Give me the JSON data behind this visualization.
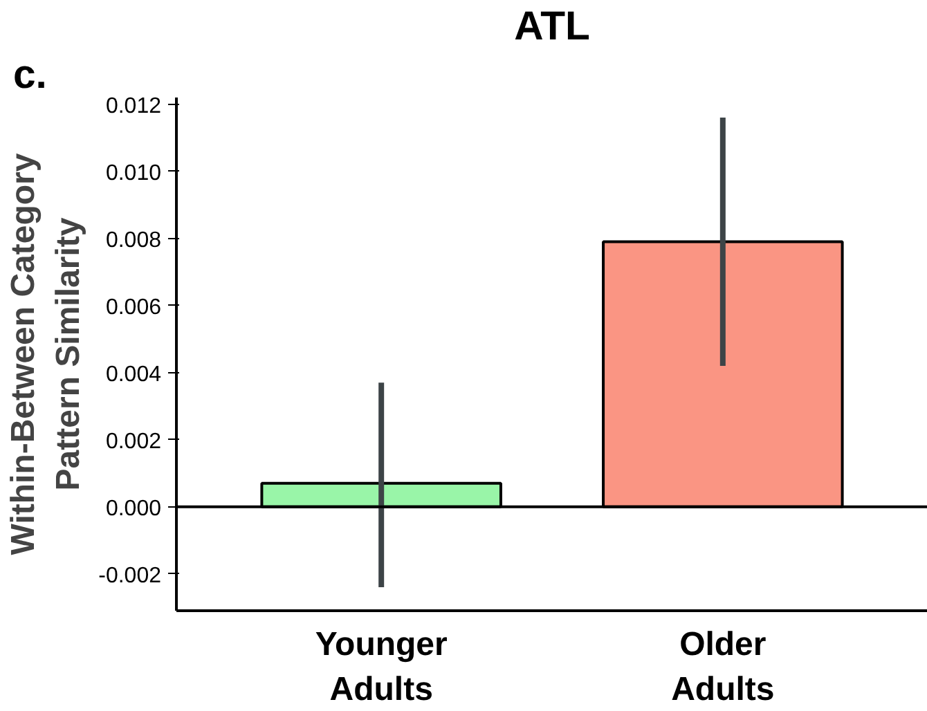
{
  "chart_data": {
    "type": "bar",
    "title": "ATL",
    "ylabel": "Within-Between Category\nPattern Similarity",
    "annotations": [
      "c."
    ],
    "categories": [
      "Younger Adults",
      "Older Adults"
    ],
    "values": [
      0.0007,
      0.0079
    ],
    "colors": [
      "#99f5a8",
      "#fa9583"
    ],
    "errors": [
      [
        -0.0024,
        0.0037
      ],
      [
        0.0042,
        0.0116
      ]
    ],
    "ylim": [
      -0.0031,
      0.0122
    ],
    "yticks": [
      {
        "value": -0.002,
        "label": "-0.002"
      },
      {
        "value": 0,
        "label": "0.000"
      },
      {
        "value": 0.002,
        "label": "0.002"
      },
      {
        "value": 0.004,
        "label": "0.004"
      },
      {
        "value": 0.006,
        "label": "0.006"
      },
      {
        "value": 0.008,
        "label": "0.008"
      },
      {
        "value": 0.01,
        "label": "0.010"
      },
      {
        "value": 0.012,
        "label": "0.012"
      }
    ],
    "ref_lines": [
      {
        "axis": "y",
        "value": 0,
        "label": null,
        "color": "#000000"
      }
    ],
    "grid": false
  }
}
